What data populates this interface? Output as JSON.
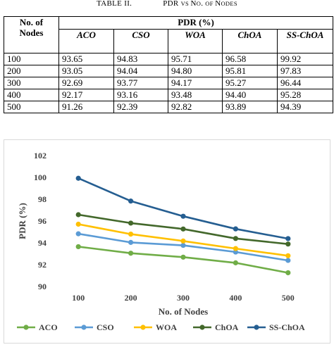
{
  "caption": {
    "label": "TABLE II.",
    "title_parts": [
      {
        "text": "PDR ",
        "size": "big"
      },
      {
        "text": "VS ",
        "size": "small"
      },
      {
        "text": "N",
        "size": "big"
      },
      {
        "text": "O",
        "size": "small"
      },
      {
        "text": ". ",
        "size": "big"
      },
      {
        "text": "OF ",
        "size": "small"
      },
      {
        "text": "N",
        "size": "big"
      },
      {
        "text": "ODES",
        "size": "small"
      }
    ]
  },
  "table": {
    "header": {
      "nodes_line1": "No. of",
      "nodes_line2": "Nodes",
      "group": "PDR (%)",
      "columns": [
        "ACO",
        "CSO",
        "WOA",
        "ChOA",
        "SS-ChOA"
      ]
    },
    "rows": [
      [
        "100",
        "93.65",
        "94.83",
        "95.71",
        "96.58",
        "99.92"
      ],
      [
        "200",
        "93.05",
        "94.04",
        "94.80",
        "95.81",
        "97.83"
      ],
      [
        "300",
        "92.69",
        "93.77",
        "94.17",
        "95.27",
        "96.44"
      ],
      [
        "400",
        "92.17",
        "93.16",
        "93.48",
        "94.40",
        "95.28"
      ],
      [
        "500",
        "91.26",
        "92.39",
        "92.82",
        "93.89",
        "94.39"
      ]
    ]
  },
  "chart_data": {
    "type": "line",
    "xlabel": "No. of Nodes",
    "ylabel": "PDR (%)",
    "categories": [
      "100",
      "200",
      "300",
      "400",
      "500"
    ],
    "ylim": [
      90,
      102
    ],
    "yticks": [
      "90",
      "92",
      "94",
      "96",
      "98",
      "100",
      "102"
    ],
    "grid": false,
    "legend": "bottom",
    "series": [
      {
        "name": "ACO",
        "color": "#70ad47",
        "values": [
          93.65,
          93.05,
          92.69,
          92.17,
          91.26
        ]
      },
      {
        "name": "CSO",
        "color": "#5b9bd5",
        "values": [
          94.83,
          94.04,
          93.77,
          93.16,
          92.39
        ]
      },
      {
        "name": "WOA",
        "color": "#ffc000",
        "values": [
          95.71,
          94.8,
          94.17,
          93.48,
          92.82
        ]
      },
      {
        "name": "ChOA",
        "color": "#43682b",
        "values": [
          96.58,
          95.81,
          95.27,
          94.4,
          93.89
        ]
      },
      {
        "name": "SS-ChOA",
        "color": "#255e91",
        "values": [
          99.92,
          97.83,
          96.44,
          95.28,
          94.39
        ]
      }
    ]
  }
}
